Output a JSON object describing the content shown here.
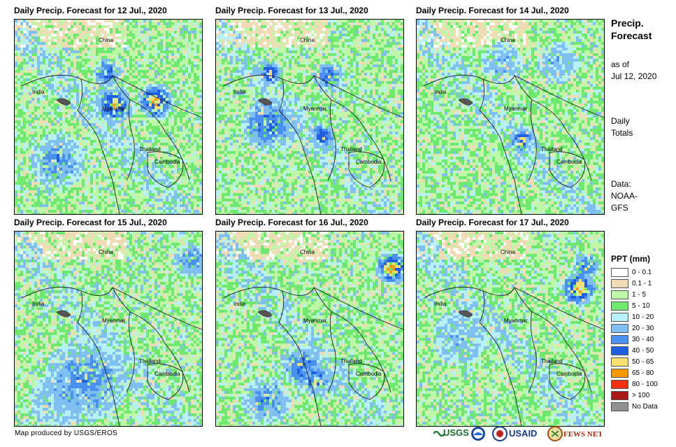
{
  "panels": [
    {
      "title": "Daily Precip. Forecast for 12 Jul., 2020"
    },
    {
      "title": "Daily Precip. Forecast for 13 Jul., 2020"
    },
    {
      "title": "Daily Precip. Forecast for 14 Jul., 2020"
    },
    {
      "title": "Daily Precip. Forecast for 15 Jul., 2020"
    },
    {
      "title": "Daily Precip. Forecast for 16 Jul., 2020"
    },
    {
      "title": "Daily Precip. Forecast for 17 Jul., 2020"
    }
  ],
  "map_labels": {
    "china": "China",
    "india": "India",
    "myanmar": "Myanmar",
    "thailand": "Thailand",
    "cambodia": "Cambodia"
  },
  "side": {
    "title_line1": "Precip.",
    "title_line2": "Forecast",
    "asof_line1": "as of",
    "asof_line2": "Jul 12, 2020",
    "totals_line1": "Daily",
    "totals_line2": "Totals",
    "data_line1": "Data:",
    "data_line2": "NOAA-",
    "data_line3": "GFS"
  },
  "legend": {
    "title": "PPT (mm)",
    "items": [
      {
        "label": "0 - 0.1",
        "color": "#ffffff"
      },
      {
        "label": "0.1 - 1",
        "color": "#f0dcb4"
      },
      {
        "label": "1 - 5",
        "color": "#bff7a8"
      },
      {
        "label": "5 - 10",
        "color": "#6ee86e"
      },
      {
        "label": "10 - 20",
        "color": "#b8f0f8"
      },
      {
        "label": "20 - 30",
        "color": "#80c0f0"
      },
      {
        "label": "30 - 40",
        "color": "#4a90ee"
      },
      {
        "label": "40 - 50",
        "color": "#1f5fe0"
      },
      {
        "label": "50 - 65",
        "color": "#f8e070"
      },
      {
        "label": "65 - 80",
        "color": "#f89800"
      },
      {
        "label": "80 - 100",
        "color": "#f03010"
      },
      {
        "label": "> 100",
        "color": "#a81818"
      },
      {
        "label": "No Data",
        "color": "#909090"
      }
    ]
  },
  "credit": "Map produced by USGS/EROS",
  "logos": {
    "usgs": "USGS",
    "usaid": "USAID",
    "fewsnet": "FEWS NET"
  }
}
